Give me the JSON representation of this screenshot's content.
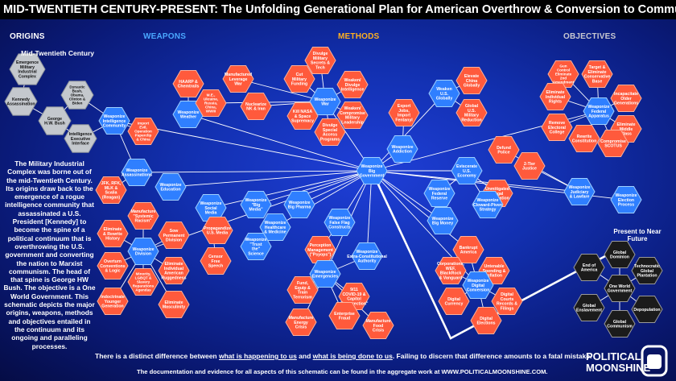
{
  "title": "MID-TWENTIETH CENTURY-PRESENT: The Unfolding Generational Plan for American Overthrow & Conversion to Communism",
  "columns": {
    "origins": "ORIGINS",
    "weapons": "WEAPONS",
    "methods": "METHODS",
    "objectives": "OBJECTIVES"
  },
  "column_colors": {
    "origins": "#ffffff",
    "weapons": "#4aa8ff",
    "methods": "#ffb020",
    "objectives": "#c8c8d0"
  },
  "mid_label": "Mid-Twentieth Century",
  "present_label": "Present to Near Future",
  "intro": "The Military Industrial Complex was borne out of the mid-Twentieth Century. Its origins draw back to the emergence of a rogue intelligence community that assassinated a U.S. President [Kennedy] to become the spine of a political continuum that is overthrowing the U.S. government and converting the nation to Marxist communism. The head of that spine is George HW Bush. The objective is a One World Government. This schematic depicts the major origins, weapons, methods and objectives entailed in the continuum and its ongoing and paralleling processes.",
  "footer": {
    "line1_a": "There is a distinct difference between ",
    "line1_b": "what is happening to us",
    "line1_c": " and ",
    "line1_d": "what is being done to us",
    "line1_e": ". Failing to discern that difference amounts to a fatal mistake.",
    "line2": "The documentation and evidence for all aspects of this schematic can be found in the aggregate work at WWW.POLITICALMOONSHINE.COM."
  },
  "logo": {
    "line1": "POLITICAL",
    "line2": "MOONSHINE"
  },
  "colors": {
    "gray": "#bfc3c8",
    "blue": "#2f7fff",
    "red": "#ff5a3c",
    "black": "#1a1a1a",
    "line": "#ffffff"
  },
  "nodes": [
    {
      "id": "mic",
      "label": "Emergence Military Industrial Complex",
      "color": "gray"
    },
    {
      "id": "kennedy",
      "label": "Kennedy Assassination",
      "color": "gray"
    },
    {
      "id": "dynastic",
      "label": "Dynastic Bush, Obama, Clinton & Biden",
      "color": "gray"
    },
    {
      "id": "ghwbush",
      "label": "George H.W. Bush",
      "color": "gray"
    },
    {
      "id": "intexec",
      "label": "Intelligence Executive Interface",
      "color": "gray"
    },
    {
      "id": "wintel",
      "label": "Weaponize Intelligence Community",
      "color": "blue"
    },
    {
      "id": "import",
      "label": "Import Evil, Operation Paperclip & China",
      "color": "red"
    },
    {
      "id": "waws",
      "label": "Weaponize Assassinations",
      "color": "blue"
    },
    {
      "id": "jfk",
      "label": "JFK, RFK, MLK & Scalia (Reagan)",
      "color": "red"
    },
    {
      "id": "haarp",
      "label": "HAARP & Chemtrails",
      "color": "red"
    },
    {
      "id": "wweather",
      "label": "Weaponize Weather",
      "color": "blue"
    },
    {
      "id": "mfglev",
      "label": "Manufactured Leverage War",
      "color": "red"
    },
    {
      "id": "me",
      "label": "M.E., Ukraine, Russia, China, WWIII",
      "color": "red"
    },
    {
      "id": "nuke",
      "label": "Nuclearize NK & Iran",
      "color": "red"
    },
    {
      "id": "cutmil",
      "label": "Cut Military Funding",
      "color": "red"
    },
    {
      "id": "divulge",
      "label": "Divulge Military Secrets & Tech",
      "color": "red"
    },
    {
      "id": "weakint",
      "label": "Weaken/ Divulge Intelligence",
      "color": "red"
    },
    {
      "id": "wwar",
      "label": "Weaponize War",
      "color": "blue"
    },
    {
      "id": "kill",
      "label": "Kill NASA & Space Supremacy",
      "color": "red"
    },
    {
      "id": "weakcomp",
      "label": "Weaken/ Compromise Military Leadership",
      "color": "red"
    },
    {
      "id": "divsap",
      "label": "Divulge Special Access Programs",
      "color": "red"
    },
    {
      "id": "exportjobs",
      "label": "Export Jobs, Import Fentanyl",
      "color": "red"
    },
    {
      "id": "waddict",
      "label": "Weaponize Addiction",
      "color": "blue"
    },
    {
      "id": "weakenus",
      "label": "Weaken U.S. Globally",
      "color": "blue"
    },
    {
      "id": "elevchina",
      "label": "Elevate China Globally",
      "color": "red"
    },
    {
      "id": "globalmil",
      "label": "Global U.S. Military Reduction",
      "color": "red"
    },
    {
      "id": "guncontrol",
      "label": "Gun Control Eliminate 2nd Amendment",
      "color": "red"
    },
    {
      "id": "target",
      "label": "Target & Eliminate Conservative Base",
      "color": "red"
    },
    {
      "id": "elimrights",
      "label": "Eliminate Individual Rights",
      "color": "red"
    },
    {
      "id": "incap",
      "label": "Incapacitate Older Generations",
      "color": "red"
    },
    {
      "id": "wfed",
      "label": "Weaponize Federal Apparatus",
      "color": "blue"
    },
    {
      "id": "removeec",
      "label": "Remove Electoral College",
      "color": "red"
    },
    {
      "id": "elimmid",
      "label": "Eliminate Middle Class",
      "color": "red"
    },
    {
      "id": "rewrite",
      "label": "Rewrite Constitution",
      "color": "red"
    },
    {
      "id": "compscotus",
      "label": "Compromise SCOTUS",
      "color": "red"
    },
    {
      "id": "defund",
      "label": "Defund Police",
      "color": "red"
    },
    {
      "id": "twotier",
      "label": "2-Tier Justice",
      "color": "red"
    },
    {
      "id": "wbig",
      "label": "Weaponize Big Government",
      "color": "blue"
    },
    {
      "id": "weducation",
      "label": "Weaponize Education",
      "color": "blue"
    },
    {
      "id": "eviscerate",
      "label": "Eviscerate U.S. Economy",
      "color": "blue"
    },
    {
      "id": "wfedres",
      "label": "Weaponize Federal Reserve",
      "color": "blue"
    },
    {
      "id": "unmitigated",
      "label": "Unmitigated Illegal Immigration",
      "color": "red"
    },
    {
      "id": "wcloward",
      "label": "Weaponize Cloward-Piven Strategy",
      "color": "blue"
    },
    {
      "id": "wjudiciary",
      "label": "Weaponize Judiciary & Lawfare",
      "color": "blue"
    },
    {
      "id": "welection",
      "label": "Weaponize Election Process",
      "color": "blue"
    },
    {
      "id": "wbigmoney",
      "label": "Weaponize Big Money",
      "color": "blue"
    },
    {
      "id": "wsocial",
      "label": "Weaponize Social Media",
      "color": "blue"
    },
    {
      "id": "wbigmedia",
      "label": "Weaponize \"Big Media\"",
      "color": "blue"
    },
    {
      "id": "wbigpharma",
      "label": "Weaponize Big Pharma",
      "color": "blue"
    },
    {
      "id": "manufsys",
      "label": "Manufacture \"Systemic Racism\"",
      "color": "red"
    },
    {
      "id": "propaganda",
      "label": "Propagandize U.S. Media",
      "color": "red"
    },
    {
      "id": "whealth",
      "label": "Weaponize Healthcare & Medicine",
      "color": "blue"
    },
    {
      "id": "wtrust",
      "label": "Weaponize \"Trust the\" Science",
      "color": "blue"
    },
    {
      "id": "censor",
      "label": "Censor Free Speech",
      "color": "red"
    },
    {
      "id": "eliminate",
      "label": "Eliminate & Rewrite History",
      "color": "red"
    },
    {
      "id": "sowperm",
      "label": "Sow Permanent Division",
      "color": "red"
    },
    {
      "id": "wdivision",
      "label": "Weaponize Division",
      "color": "blue"
    },
    {
      "id": "overturn",
      "label": "Overturn Conventions & Logic",
      "color": "red"
    },
    {
      "id": "elimind",
      "label": "Eliminate Individual American Ruggedness",
      "color": "red"
    },
    {
      "id": "minority",
      "label": "Minority, LGBQT & Slavery Reparations Agendas",
      "color": "red"
    },
    {
      "id": "indoc",
      "label": "Indoctrinate Younger Generation",
      "color": "red"
    },
    {
      "id": "elimmasc",
      "label": "Eliminate Masculinity",
      "color": "red"
    },
    {
      "id": "wfalseflag",
      "label": "Weaponize False Flag Constructs",
      "color": "blue"
    },
    {
      "id": "perception",
      "label": "Perception Management (\"Psyops\")",
      "color": "red"
    },
    {
      "id": "wextra",
      "label": "Weaponize Extra-Constitutional Authority",
      "color": "blue"
    },
    {
      "id": "wemerg",
      "label": "Weaponize Emergencies",
      "color": "blue"
    },
    {
      "id": "fund",
      "label": "Fund, Equip & Train Terrorism",
      "color": "red"
    },
    {
      "id": "covid",
      "label": "9/11 COVID-19 & Capitol \"Insurrection\"",
      "color": "red"
    },
    {
      "id": "enterprise",
      "label": "Enterprise Fraud",
      "color": "red"
    },
    {
      "id": "mfgenergy",
      "label": "Manufacture Energy Crisis",
      "color": "red"
    },
    {
      "id": "mfgfood",
      "label": "Manufacture Food Crisis",
      "color": "red"
    },
    {
      "id": "bankrupt",
      "label": "Bankrupt America",
      "color": "red"
    },
    {
      "id": "corporations",
      "label": "Corporations, WEF, BlackRock & Vanguard",
      "color": "red"
    },
    {
      "id": "untenable",
      "label": "Untenable Spending & Inflation",
      "color": "red"
    },
    {
      "id": "wdigital",
      "label": "Weaponize Digital Conversion",
      "color": "blue"
    },
    {
      "id": "digcurrency",
      "label": "Digital Currency",
      "color": "red"
    },
    {
      "id": "digcourts",
      "label": "Digital Courts Records & Filings",
      "color": "red"
    },
    {
      "id": "digelections",
      "label": "Digital Elections",
      "color": "red"
    },
    {
      "id": "globaldom",
      "label": "Global Dominion",
      "color": "black"
    },
    {
      "id": "endamerica",
      "label": "End of America",
      "color": "black"
    },
    {
      "id": "technocratic",
      "label": "Technocratic Global Plantation",
      "color": "black"
    },
    {
      "id": "oneworld",
      "label": "One World Government",
      "color": "black"
    },
    {
      "id": "globalenslave",
      "label": "Global Enslavement",
      "color": "black"
    },
    {
      "id": "depop",
      "label": "Depopulation",
      "color": "black"
    },
    {
      "id": "globalcomm",
      "label": "Global Communism",
      "color": "black"
    }
  ]
}
